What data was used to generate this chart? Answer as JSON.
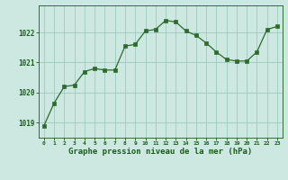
{
  "x": [
    0,
    1,
    2,
    3,
    4,
    5,
    6,
    7,
    8,
    9,
    10,
    11,
    12,
    13,
    14,
    15,
    16,
    17,
    18,
    19,
    20,
    21,
    22,
    23
  ],
  "y": [
    1018.9,
    1019.65,
    1020.2,
    1020.25,
    1020.7,
    1020.8,
    1020.75,
    1020.75,
    1021.55,
    1021.6,
    1022.05,
    1022.1,
    1022.4,
    1022.35,
    1022.05,
    1021.9,
    1021.65,
    1021.35,
    1021.1,
    1021.05,
    1021.05,
    1021.35,
    1022.1,
    1022.2
  ],
  "line_color": "#2d6a2d",
  "marker_color": "#2d6a2d",
  "bg_color": "#cce8e0",
  "grid_color": "#9dc8be",
  "label_color": "#1a5c1a",
  "xlabel": "Graphe pression niveau de la mer (hPa)",
  "ylim": [
    1018.5,
    1022.9
  ],
  "yticks": [
    1019,
    1020,
    1021,
    1022
  ],
  "xticks": [
    0,
    1,
    2,
    3,
    4,
    5,
    6,
    7,
    8,
    9,
    10,
    11,
    12,
    13,
    14,
    15,
    16,
    17,
    18,
    19,
    20,
    21,
    22,
    23
  ]
}
